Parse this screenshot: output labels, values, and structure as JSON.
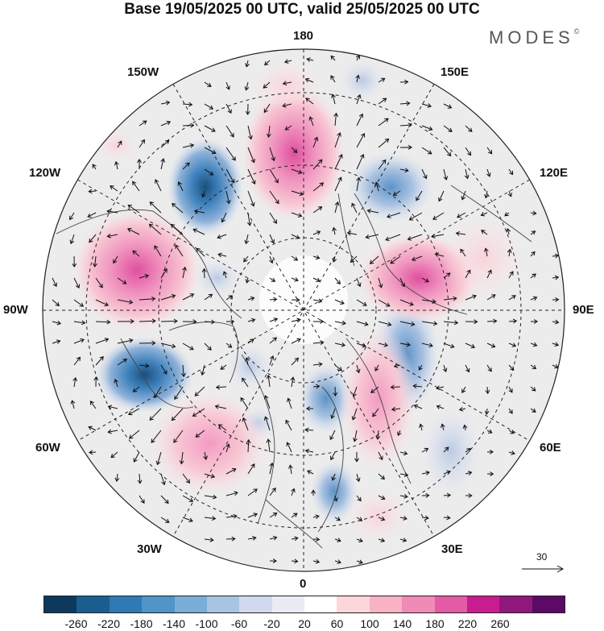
{
  "title": "Base 19/05/2025 00 UTC, valid 25/05/2025 00 UTC",
  "brand": "MODES",
  "brand_mark": "©",
  "map": {
    "projection": "north-polar-stereographic",
    "longitude_labels": {
      "top": "180",
      "bottom": "0",
      "left": "90W",
      "right": "90E",
      "upper_left": "150W",
      "upper_right": "150E",
      "mid_left_upper": "120W",
      "mid_right_upper": "120E",
      "mid_left_lower": "60W",
      "mid_right_lower": "60E",
      "lower_left": "30W",
      "lower_right": "30E"
    },
    "reference_vector_label": "30",
    "background_color": "#ececec",
    "positive_color": "#e36fa6",
    "negative_color": "#2d6aa0"
  },
  "colorbar": {
    "colors": [
      "#0d3a5c",
      "#1a5e8f",
      "#2f79b4",
      "#4f95c8",
      "#7aaed6",
      "#a8c4e2",
      "#d0d9ee",
      "#ebebf5",
      "#ffffff",
      "#fbd7db",
      "#f7b3c4",
      "#f08ab6",
      "#e35aa5",
      "#c81d8e",
      "#90187a",
      "#5b0a66"
    ],
    "ticks": [
      "-260",
      "-220",
      "-180",
      "-140",
      "-100",
      "-60",
      "-20",
      "20",
      "60",
      "100",
      "140",
      "180",
      "220",
      "260"
    ]
  }
}
